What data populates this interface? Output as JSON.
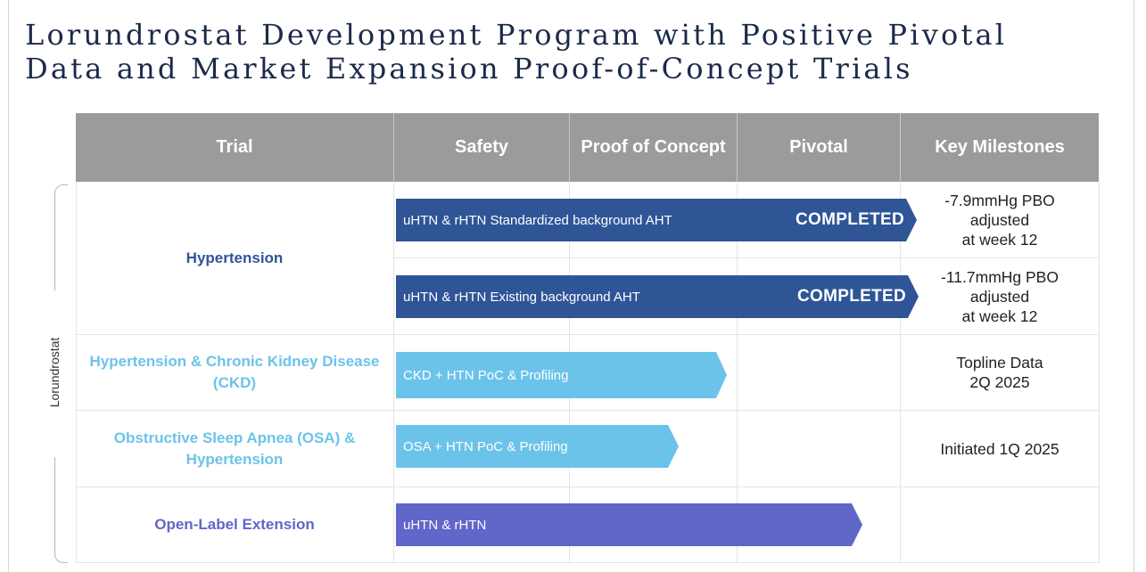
{
  "title_lines": [
    "Lorundrostat Development Program with Positive Pivotal",
    "Data and Market Expansion Proof-of-Concept Trials"
  ],
  "side_label": "Lorundrostat",
  "header": {
    "trial": "Trial",
    "safety": "Safety",
    "poc": "Proof of Concept",
    "pivotal": "Pivotal",
    "milestones": "Key Milestones"
  },
  "colors": {
    "header_bg": "#9b9b9b",
    "dark_blue": "#2f5597",
    "light_blue": "#6cc3ea",
    "purple": "#6166c9"
  },
  "rows": [
    {
      "trial": "Hypertension",
      "bars": [
        {
          "label": "uHTN & rHTN Standardized background AHT",
          "status": "COMPLETED",
          "milestone": [
            "-7.9mmHg PBO",
            "adjusted",
            "at week 12"
          ]
        },
        {
          "label": "uHTN & rHTN Existing background AHT",
          "status": "COMPLETED",
          "milestone": [
            "-11.7mmHg PBO",
            "adjusted",
            "at week 12"
          ]
        }
      ]
    },
    {
      "trial": "Hypertension & Chronic Kidney Disease (CKD)",
      "bars": [
        {
          "label": "CKD + HTN PoC & Profiling",
          "status": "",
          "milestone": [
            "Topline Data",
            "2Q 2025"
          ]
        }
      ]
    },
    {
      "trial": "Obstructive Sleep Apnea (OSA) & Hypertension",
      "bars": [
        {
          "label": "OSA + HTN PoC & Profiling",
          "status": "",
          "milestone": [
            "Initiated 1Q 2025"
          ]
        }
      ]
    },
    {
      "trial": "Open-Label Extension",
      "bars": [
        {
          "label": "uHTN & rHTN",
          "status": "",
          "milestone": []
        }
      ]
    }
  ]
}
